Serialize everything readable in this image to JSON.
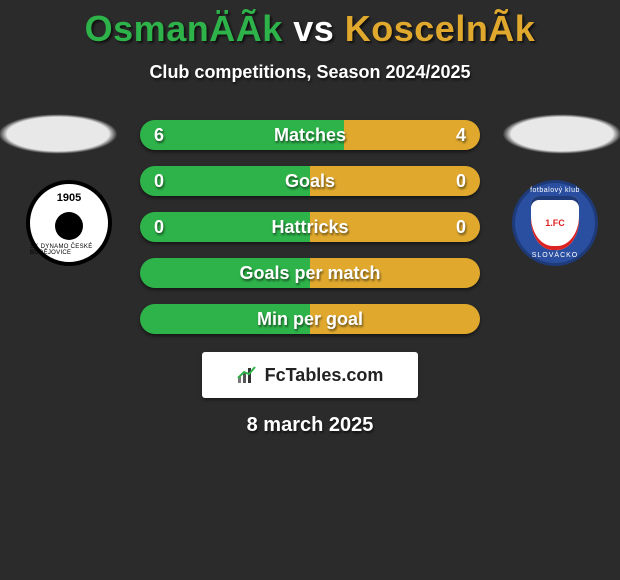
{
  "title": {
    "player1": "OsmanÄÃ­k",
    "vs": " vs ",
    "player2": "KoscelnÃ­k",
    "color_player1": "#2eb34a",
    "color_vs": "#ffffff",
    "color_player2": "#e0a92e"
  },
  "subtitle": "Club competitions, Season 2024/2025",
  "colors": {
    "background": "#2b2b2b",
    "left": "#2eb34a",
    "right": "#e0a92e",
    "flag_left": "#e8e8e8",
    "flag_right": "#e8e8e8",
    "text": "#ffffff"
  },
  "flags": {
    "left": {
      "fill": "#e8e8e8"
    },
    "right": {
      "fill": "#e8e8e8"
    }
  },
  "crests": {
    "left": {
      "year": "1905",
      "ring": "SK DYNAMO ČESKÉ BUDĚJOVICE"
    },
    "right": {
      "top": "fotbalový klub",
      "center": "1.FC",
      "bottom": "SLOVÁCKO"
    }
  },
  "bars": [
    {
      "label": "Matches",
      "left": "6",
      "right": "4",
      "left_pct": 60,
      "right_pct": 40,
      "show_values": true
    },
    {
      "label": "Goals",
      "left": "0",
      "right": "0",
      "left_pct": 50,
      "right_pct": 50,
      "show_values": true
    },
    {
      "label": "Hattricks",
      "left": "0",
      "right": "0",
      "left_pct": 50,
      "right_pct": 50,
      "show_values": true
    },
    {
      "label": "Goals per match",
      "left": "",
      "right": "",
      "left_pct": 50,
      "right_pct": 50,
      "show_values": false
    },
    {
      "label": "Min per goal",
      "left": "",
      "right": "",
      "left_pct": 50,
      "right_pct": 50,
      "show_values": false
    }
  ],
  "watermark": "FcTables.com",
  "date": "8 march 2025"
}
